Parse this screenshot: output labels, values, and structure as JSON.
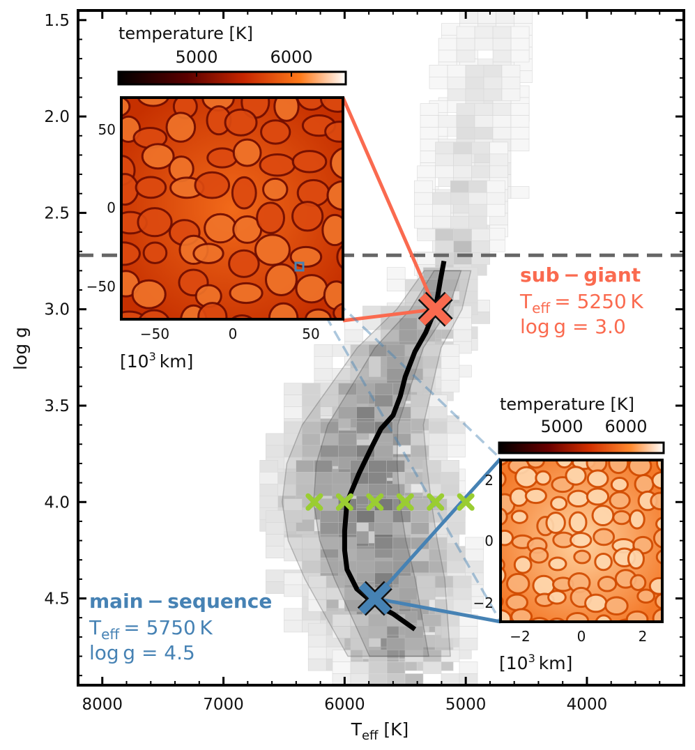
{
  "chart_data": {
    "type": "heatmap",
    "xlabel_main": "T",
    "xlabel_sub": "eff",
    "xlabel_unit": " [K]",
    "ylabel": "log g",
    "xlim": [
      8200,
      3200
    ],
    "ylim": [
      4.95,
      1.45
    ],
    "xticks": [
      8000,
      7000,
      6000,
      5000,
      4000
    ],
    "xtick_labels": [
      "8000",
      "7000",
      "6000",
      "5000",
      "4000"
    ],
    "yticks": [
      1.5,
      2.0,
      2.5,
      3.0,
      3.5,
      4.0,
      4.5
    ],
    "ytick_labels": [
      "1.5",
      "2.0",
      "2.5",
      "3.0",
      "3.5",
      "4.0",
      "4.5"
    ],
    "separator_logg": 2.72,
    "giant_column": [
      {
        "logg": 1.55,
        "teff": 4900,
        "width": 600,
        "shade": 0.1
      },
      {
        "logg": 1.75,
        "teff": 4900,
        "width": 650,
        "shade": 0.14
      },
      {
        "logg": 1.95,
        "teff": 4950,
        "width": 700,
        "shade": 0.16
      },
      {
        "logg": 2.15,
        "teff": 5000,
        "width": 750,
        "shade": 0.18
      },
      {
        "logg": 2.35,
        "teff": 5050,
        "width": 700,
        "shade": 0.2
      },
      {
        "logg": 2.55,
        "teff": 5100,
        "width": 650,
        "shade": 0.22
      }
    ],
    "sequence_band": [
      {
        "logg": 2.8,
        "teff": 5150,
        "width": 500,
        "shade": 0.3
      },
      {
        "logg": 3.0,
        "teff": 5300,
        "width": 700,
        "shade": 0.3
      },
      {
        "logg": 3.2,
        "teff": 5550,
        "width": 900,
        "shade": 0.3
      },
      {
        "logg": 3.4,
        "teff": 5700,
        "width": 1100,
        "shade": 0.35
      },
      {
        "logg": 3.6,
        "teff": 5850,
        "width": 1300,
        "shade": 0.42
      },
      {
        "logg": 3.8,
        "teff": 5900,
        "width": 1500,
        "shade": 0.48
      },
      {
        "logg": 4.0,
        "teff": 5900,
        "width": 1600,
        "shade": 0.52
      },
      {
        "logg": 4.2,
        "teff": 5850,
        "width": 1600,
        "shade": 0.5
      },
      {
        "logg": 4.4,
        "teff": 5750,
        "width": 1500,
        "shade": 0.45
      },
      {
        "logg": 4.6,
        "teff": 5650,
        "width": 1300,
        "shade": 0.4
      },
      {
        "logg": 4.8,
        "teff": 5550,
        "width": 1100,
        "shade": 0.3
      }
    ],
    "track": {
      "name": "evolutionary track",
      "x": [
        5180,
        5210,
        5250,
        5330,
        5420,
        5500,
        5540,
        5600,
        5700,
        5780,
        5880,
        5980,
        6000,
        6000,
        5980,
        5900,
        5750,
        5600,
        5420
      ],
      "y": [
        2.75,
        2.85,
        3.0,
        3.12,
        3.22,
        3.35,
        3.45,
        3.55,
        3.62,
        3.72,
        3.85,
        4.0,
        4.15,
        4.25,
        4.35,
        4.45,
        4.53,
        4.58,
        4.66
      ]
    },
    "grid_markers": {
      "name": "model grid at log g = 4.0",
      "teff": [
        6250,
        6000,
        5750,
        5500,
        5250,
        5000
      ],
      "logg": [
        4.0,
        4.0,
        4.0,
        4.0,
        4.0,
        4.0
      ],
      "color": "#9acd32"
    },
    "subgiant": {
      "title": "sub − giant",
      "teff_prefix": "T",
      "teff_sub": "eff",
      "teff_value": "=  5250 K",
      "logg_text": "log g =  3.0",
      "teff": 5250,
      "logg": 3.0,
      "color": "#fa6a4f"
    },
    "mainsequence": {
      "title": "main − sequence",
      "teff_prefix": "T",
      "teff_sub": "eff",
      "teff_value": "=  5750 K",
      "logg_text": "log g =  4.5",
      "teff": 5750,
      "logg": 4.5,
      "color": "#4682b4"
    },
    "inset_subgiant": {
      "colorbar_title": "temperature [K]",
      "colorbar_ticks": [
        "5000",
        "6000"
      ],
      "xticks": [
        "−50",
        "0",
        "50"
      ],
      "yticks": [
        "50",
        "0",
        "−50"
      ],
      "unit_label": "[10",
      "unit_sup": "3",
      "unit_rest": " km]"
    },
    "inset_mainsequence": {
      "colorbar_title": "temperature [K]",
      "colorbar_ticks": [
        "5000",
        "6000"
      ],
      "xticks": [
        "−2",
        "0",
        "2"
      ],
      "yticks": [
        "2",
        "0",
        "−2"
      ],
      "unit_label": "[10",
      "unit_sup": "3",
      "unit_rest": " km]"
    }
  }
}
